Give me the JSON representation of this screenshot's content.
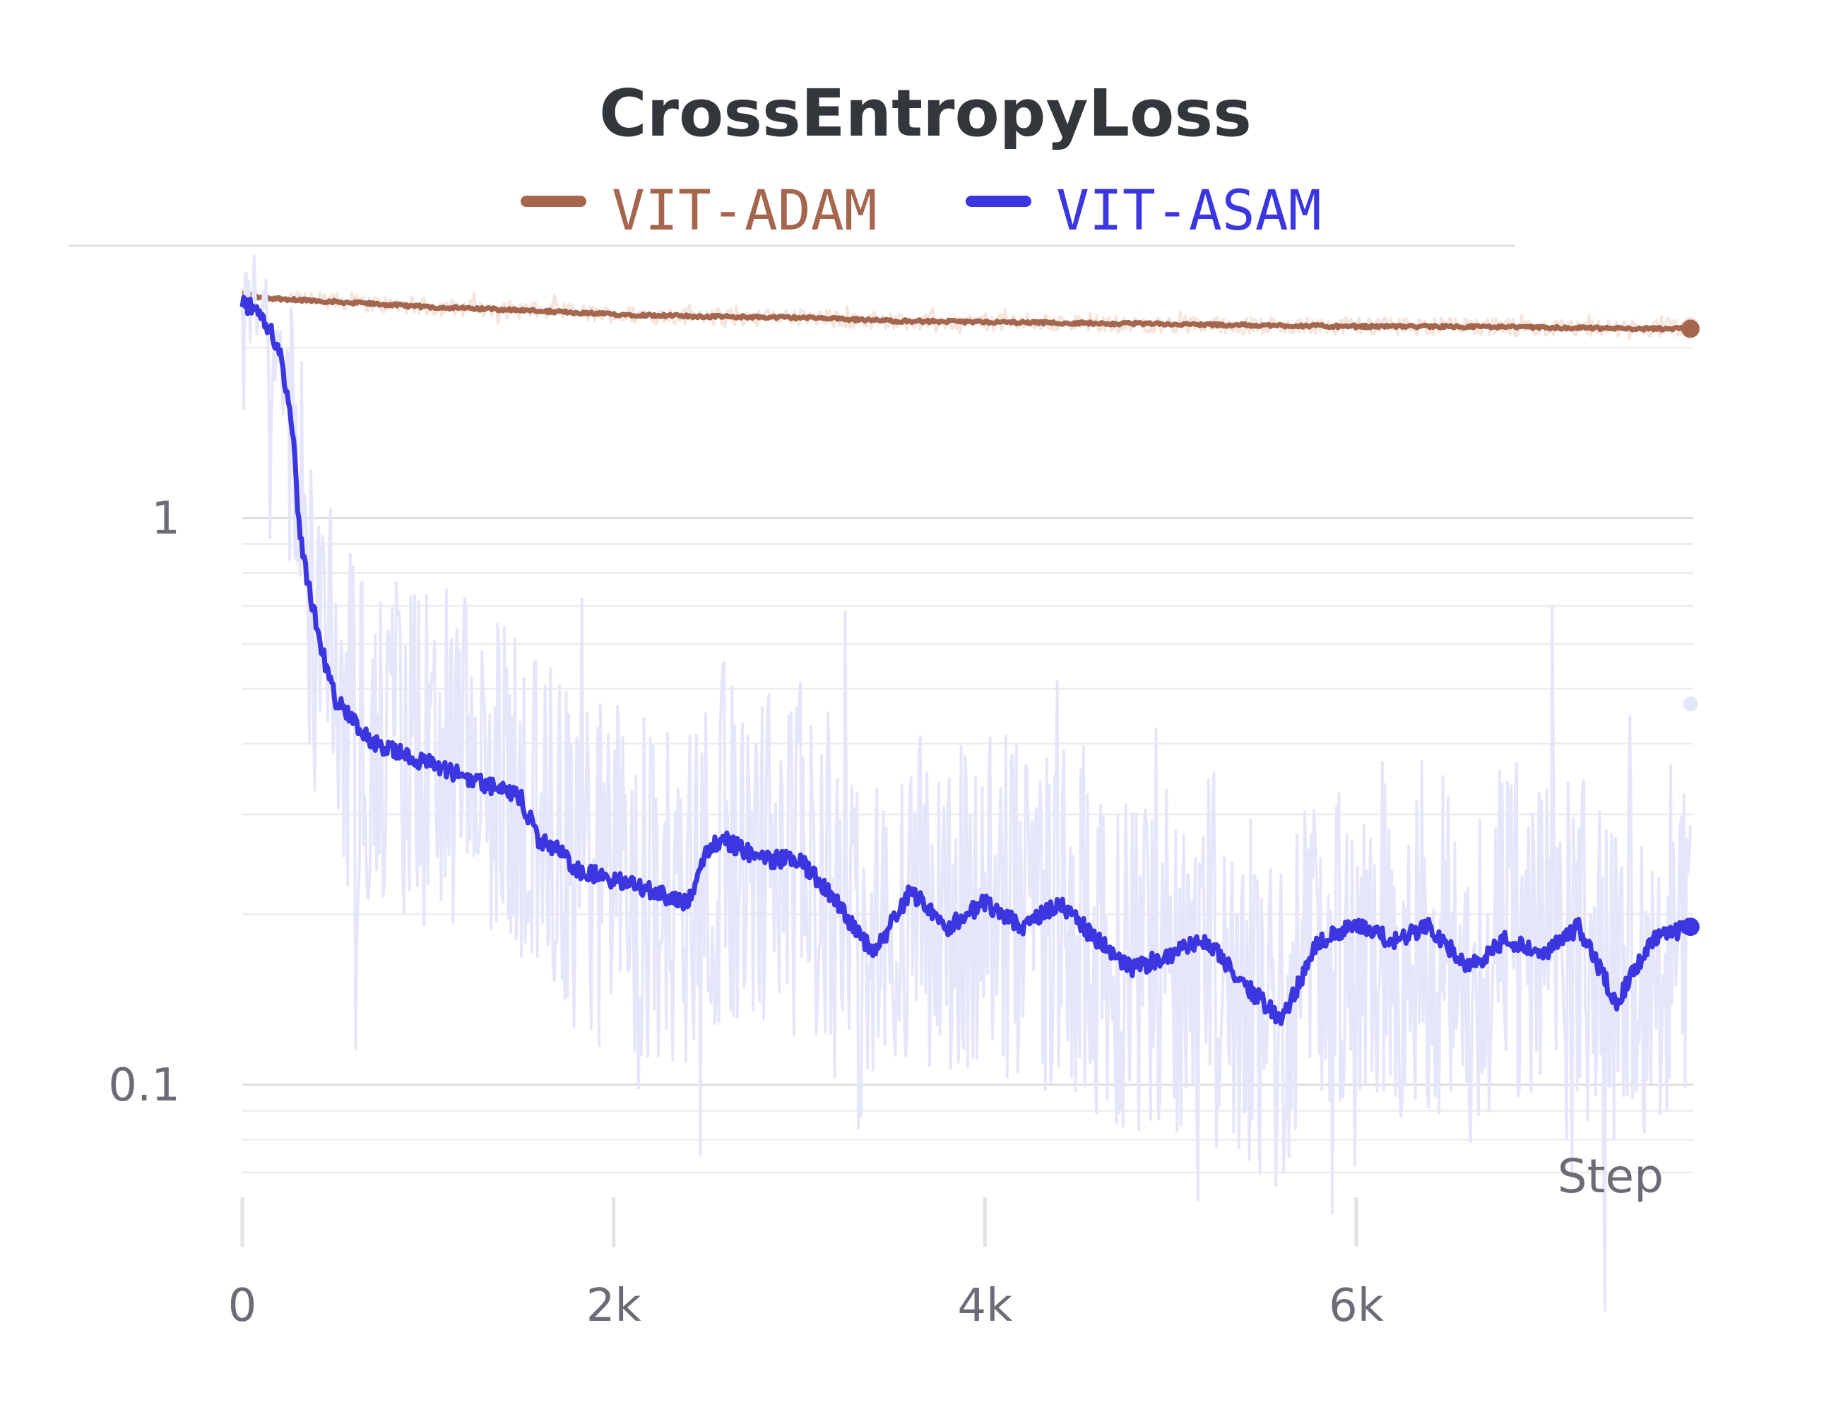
{
  "chart_data": {
    "type": "line",
    "title": "CrossEntropyLoss",
    "xlabel": "Step",
    "ylabel": "",
    "x_scale": "linear",
    "y_scale": "log",
    "xlim": [
      0,
      7800
    ],
    "ylim": [
      0.07,
      2.8
    ],
    "x_ticks": [
      {
        "value": 0,
        "label": "0"
      },
      {
        "value": 2000,
        "label": "2k"
      },
      {
        "value": 4000,
        "label": "4k"
      },
      {
        "value": 6000,
        "label": "6k"
      }
    ],
    "y_ticks": [
      {
        "value": 1,
        "label": "1"
      },
      {
        "value": 0.1,
        "label": "0.1"
      }
    ],
    "grid": true,
    "legend_position": "top-center",
    "series": [
      {
        "name": "VIT-ADAM",
        "color": "#a5664e",
        "raw_color": "#f4e6de",
        "x": [
          0,
          100,
          300,
          500,
          1000,
          1500,
          2000,
          2500,
          3000,
          3500,
          4000,
          4500,
          5000,
          5500,
          6000,
          6500,
          7000,
          7500,
          7800
        ],
        "y": [
          2.5,
          2.45,
          2.43,
          2.41,
          2.36,
          2.33,
          2.29,
          2.27,
          2.26,
          2.23,
          2.22,
          2.21,
          2.2,
          2.19,
          2.18,
          2.18,
          2.17,
          2.16,
          2.16
        ],
        "raw_amplitude": 0.035,
        "final_raw": 2.2
      },
      {
        "name": "VIT-ASAM",
        "color": "#3b36e0",
        "raw_color": "#e6e6fb",
        "x": [
          0,
          100,
          200,
          250,
          280,
          300,
          350,
          400,
          450,
          500,
          600,
          700,
          800,
          1000,
          1200,
          1400,
          1500,
          1600,
          1700,
          1800,
          2000,
          2200,
          2400,
          2500,
          2600,
          2800,
          3000,
          3200,
          3400,
          3600,
          3800,
          4000,
          4200,
          4400,
          4600,
          4800,
          5000,
          5200,
          5400,
          5600,
          5800,
          6000,
          6200,
          6400,
          6600,
          6800,
          7000,
          7200,
          7400,
          7600,
          7800
        ],
        "y": [
          2.4,
          2.3,
          2.0,
          1.6,
          1.3,
          1.0,
          0.78,
          0.65,
          0.55,
          0.48,
          0.44,
          0.4,
          0.39,
          0.37,
          0.35,
          0.33,
          0.32,
          0.27,
          0.26,
          0.24,
          0.23,
          0.22,
          0.21,
          0.26,
          0.27,
          0.25,
          0.25,
          0.21,
          0.17,
          0.22,
          0.19,
          0.21,
          0.19,
          0.21,
          0.18,
          0.16,
          0.17,
          0.18,
          0.15,
          0.13,
          0.18,
          0.19,
          0.18,
          0.19,
          0.16,
          0.18,
          0.17,
          0.19,
          0.14,
          0.18,
          0.19
        ],
        "raw_amplitude": 0.35,
        "final_raw": 0.47
      }
    ]
  }
}
